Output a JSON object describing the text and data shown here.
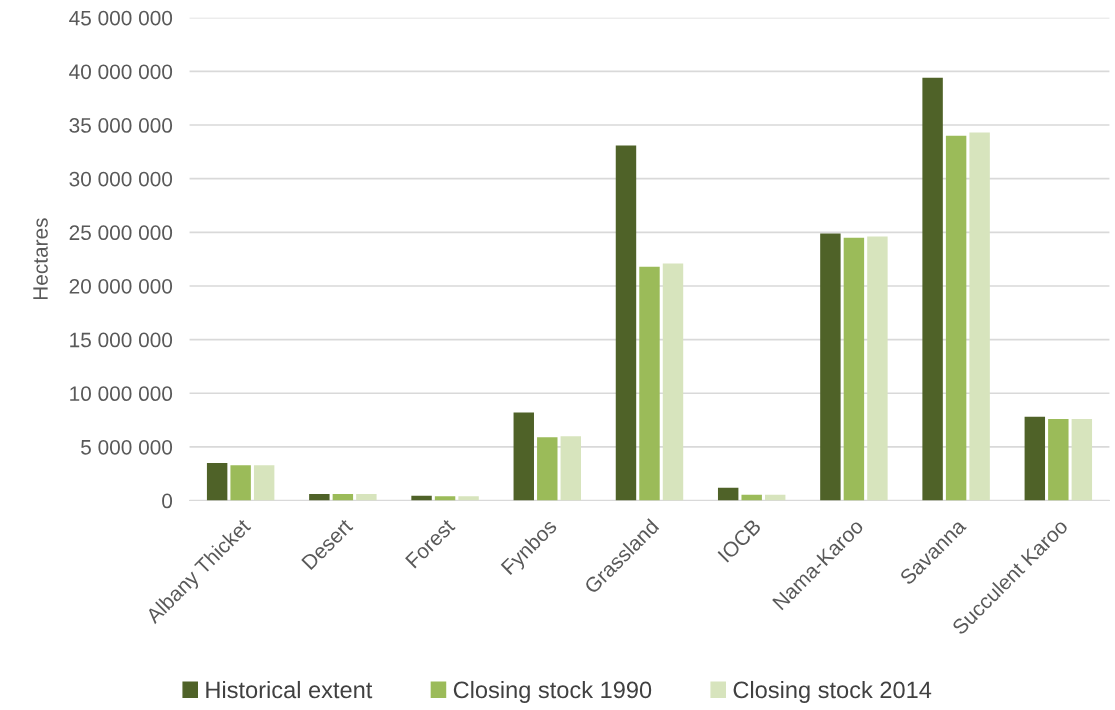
{
  "chart_data": {
    "type": "bar",
    "ylabel": "Hectares",
    "categories": [
      "Albany Thicket",
      "Desert",
      "Forest",
      "Fynbos",
      "Grassland",
      "IOCB",
      "Nama-Karoo",
      "Savanna",
      "Succulent Karoo"
    ],
    "series": [
      {
        "name": "Historical extent",
        "color": "#4f6228",
        "values": [
          3500000,
          600000,
          450000,
          8200000,
          33100000,
          1200000,
          24900000,
          39400000,
          7800000
        ]
      },
      {
        "name": "Closing stock 1990",
        "color": "#9bbb59",
        "values": [
          3300000,
          600000,
          400000,
          5900000,
          21800000,
          550000,
          24500000,
          34000000,
          7600000
        ]
      },
      {
        "name": "Closing stock 2014",
        "color": "#d7e4bd",
        "values": [
          3300000,
          600000,
          400000,
          6000000,
          22100000,
          550000,
          24600000,
          34300000,
          7600000
        ]
      }
    ],
    "ylim": [
      0,
      45000000
    ],
    "yticks": [
      0,
      {
        "value": 5000000,
        "label": "5 000 000"
      },
      {
        "value": 10000000,
        "label": "10 000 000"
      },
      {
        "value": 15000000,
        "label": "15 000 000"
      },
      {
        "value": 20000000,
        "label": "20 000 000"
      },
      {
        "value": 25000000,
        "label": "25 000 000"
      },
      {
        "value": 30000000,
        "label": "30 000 000"
      },
      {
        "value": 35000000,
        "label": "35 000 000"
      },
      {
        "value": 40000000,
        "label": "40 000 000"
      },
      {
        "value": 45000000,
        "label": "45 000 000"
      }
    ],
    "grid": "y",
    "legend": "bottom"
  }
}
